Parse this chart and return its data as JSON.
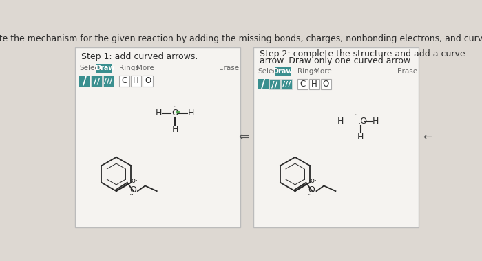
{
  "bg_color": "#ddd8d2",
  "title": "Complete the mechanism for the given reaction by adding the missing bonds, charges, nonbonding electrons, and curved arrows.",
  "title_fontsize": 9.0,
  "panel1_title": "Step 1: add curved arrows.",
  "panel2_title_line1": "Step 2: complete the structure and add a curve",
  "panel2_title_line2": "arrow. Draw only one curved arrow.",
  "panel_bg": "#f5f3f0",
  "panel_border": "#bbbbbb",
  "draw_btn_color": "#3a8f8f",
  "toolbar_bg": "#3a8f8f",
  "bond_color": "#2a2a2a",
  "text_color": "#2a2a2a",
  "light_text": "#666666",
  "white": "#ffffff",
  "green_dot": "#5ab55a"
}
